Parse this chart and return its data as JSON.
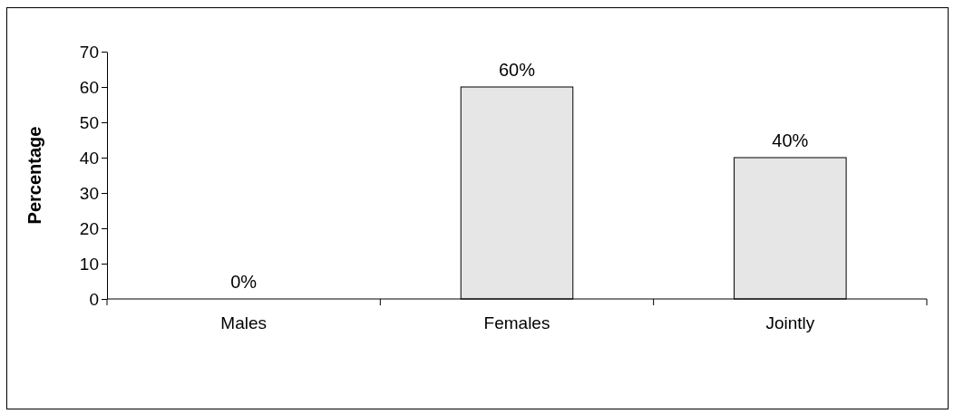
{
  "chart_data": {
    "type": "bar",
    "ylabel": "Percentage",
    "categories": [
      "Males",
      "Females",
      "Jointly"
    ],
    "values": [
      0,
      60,
      40
    ],
    "value_labels": [
      "0%",
      "60%",
      "40%"
    ],
    "color": "#e6e6e6",
    "ylim": [
      0,
      70
    ],
    "yticks": [
      0,
      10,
      20,
      30,
      40,
      50,
      60,
      70
    ],
    "grid": false
  }
}
